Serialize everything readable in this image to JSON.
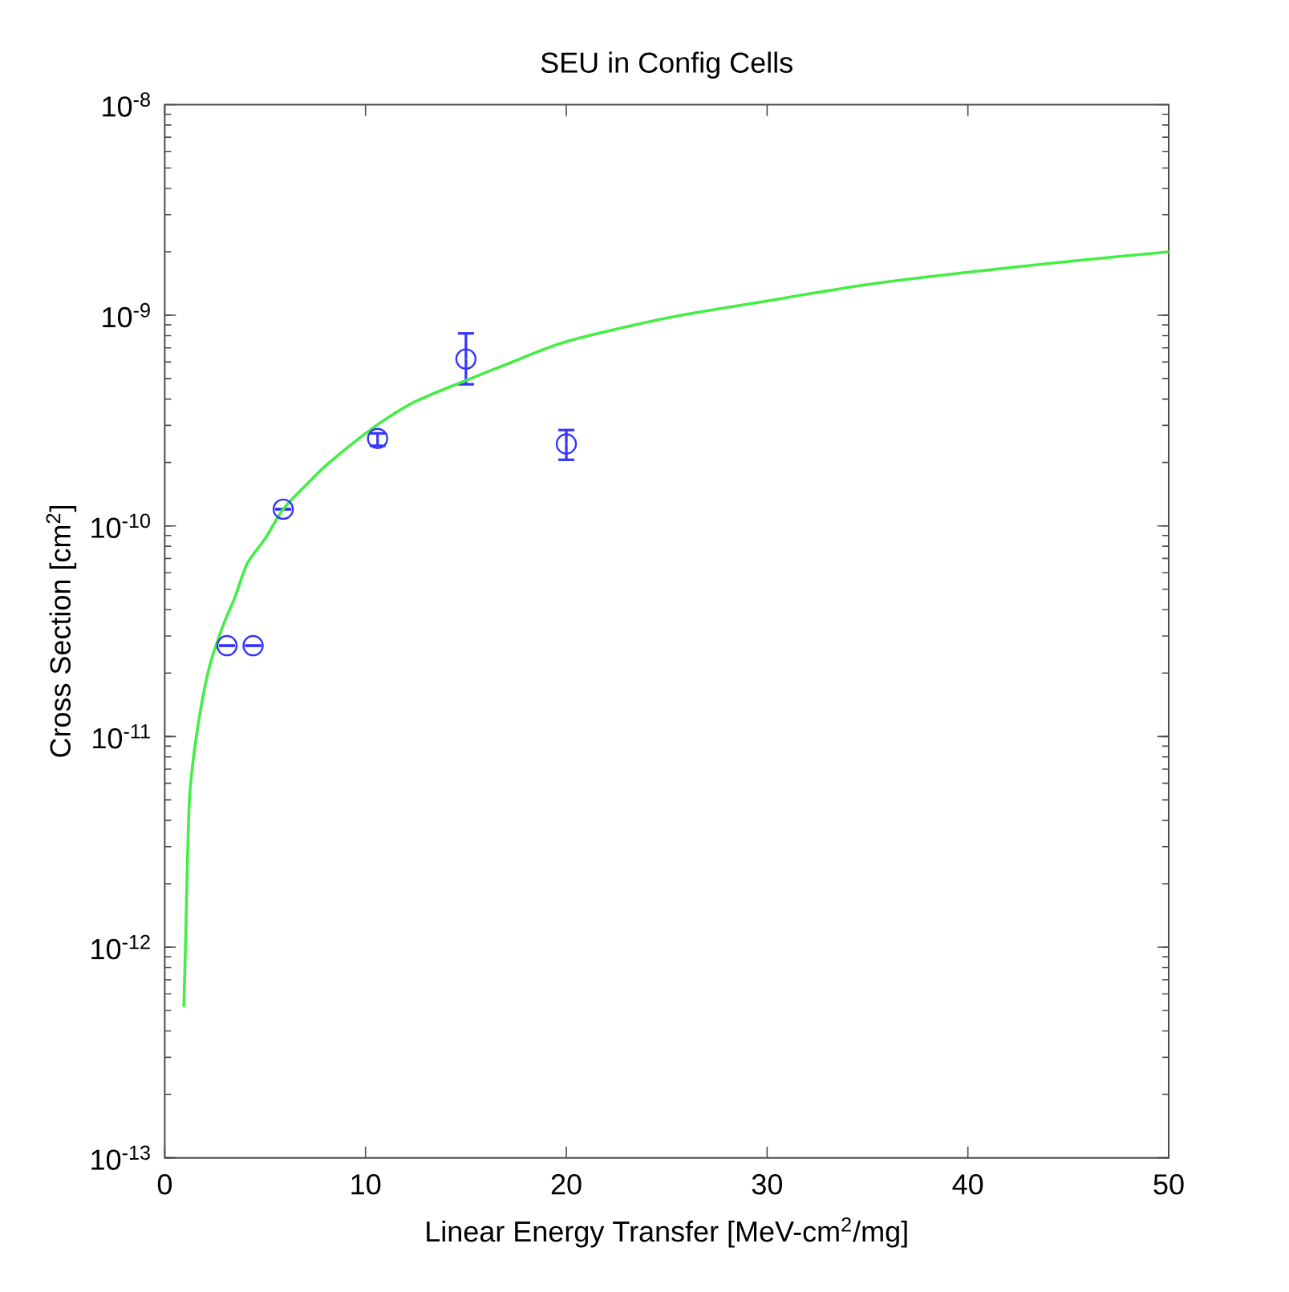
{
  "chart_data": {
    "type": "scatter",
    "title": "SEU in Config Cells",
    "xlabel": "Linear Energy Transfer [MeV-cm$^{2}$/mg]",
    "ylabel": "Cross Section [cm$^{2}$]",
    "log": "y",
    "grid": false,
    "xlim": [
      0,
      50
    ],
    "ylim": [
      1e-13,
      1e-08
    ],
    "xticks": [
      0,
      10,
      20,
      30,
      40,
      50
    ],
    "yticks": [
      {
        "value": 1e-13,
        "label": "10$^{-13}$"
      },
      {
        "value": 1e-12,
        "label": "10$^{-12}$"
      },
      {
        "value": 1e-11,
        "label": "10$^{-11}$"
      },
      {
        "value": 1e-10,
        "label": "10$^{-10}$"
      },
      {
        "value": 1e-09,
        "label": "10$^{-9}$"
      },
      {
        "value": 1e-08,
        "label": "10$^{-8}$"
      }
    ],
    "series": [
      {
        "marker": "circle",
        "color": "#3333ff",
        "x": [
          3.1,
          4.4,
          5.9,
          10.6,
          15,
          20
        ],
        "values": [
          2.7e-11,
          2.7e-11,
          1.2e-10,
          2.6e-10,
          6.2e-10,
          2.45e-10
        ],
        "errors": [
          null,
          null,
          null,
          [
            2.4e-10,
            2.75e-10
          ],
          [
            4.7e-10,
            8.2e-10
          ],
          [
            2.06e-10,
            2.85e-10
          ]
        ]
      },
      {
        "type": "line",
        "marker": "none",
        "color": "#44ee44",
        "x": [
          0.95,
          1.03,
          1.23,
          1.64,
          2.2,
          2.87,
          3.5,
          4.1,
          5,
          5.9,
          7,
          8.2,
          10.55,
          12.5,
          15,
          17.5,
          20,
          25,
          30,
          35,
          40,
          45,
          50
        ],
        "values": [
          5.2e-13,
          1e-12,
          5e-12,
          1.1e-11,
          2.1e-11,
          3.3e-11,
          4.6e-11,
          6.6e-11,
          8.7e-11,
          1.2e-10,
          1.55e-10,
          2e-10,
          3e-10,
          3.9e-10,
          4.9e-10,
          6.1e-10,
          7.5e-10,
          9.7e-10,
          1.17e-09,
          1.4e-09,
          1.6e-09,
          1.8e-09,
          2e-09
        ]
      }
    ]
  }
}
